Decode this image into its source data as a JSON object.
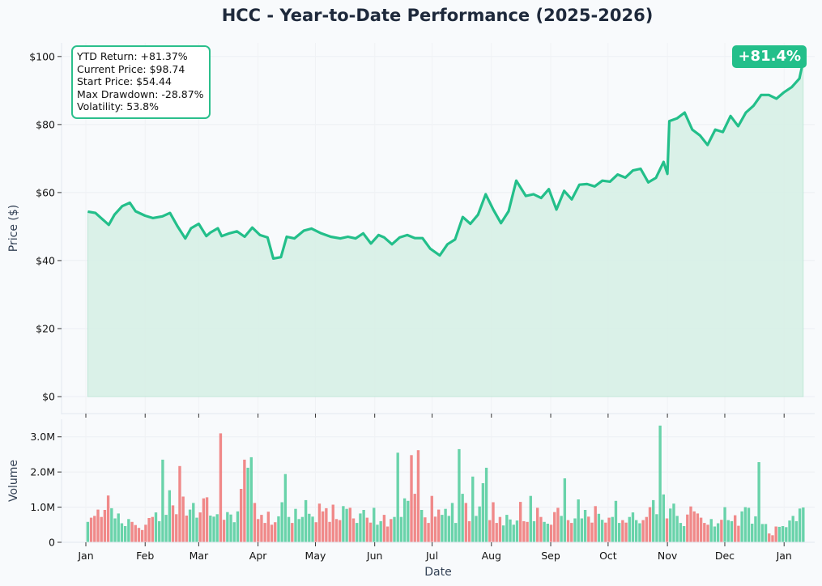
{
  "title": "HCC - Year-to-Date Performance (2025-2026)",
  "stats": {
    "ytd_return": "YTD Return: +81.37%",
    "current_price": "Current Price: $98.74",
    "start_price": "Start Price: $54.44",
    "max_drawdown": "Max Drawdown: -28.87%",
    "volatility": "Volatility: 53.8%"
  },
  "badge": "+81.4%",
  "colors": {
    "accent": "#23bf8a",
    "area_fill": "#d5efe4",
    "volume_up": "#5ccfa3",
    "volume_down": "#ef7f7f",
    "background": "#f8fafc"
  },
  "chart_data": [
    {
      "type": "area",
      "title": "HCC - Year-to-Date Performance (2025-2026)",
      "xlabel": "",
      "ylabel": "Price ($)",
      "ylim": [
        0,
        104
      ],
      "y_ticks": [
        "$0",
        "$20",
        "$40",
        "$60",
        "$80",
        "$100"
      ],
      "y_tick_values": [
        0,
        20,
        40,
        60,
        80,
        100
      ],
      "x_range": [
        "2025-01-01",
        "2026-01-17"
      ],
      "grid": true,
      "series": [
        {
          "x": [
            "2025-01-02",
            "2025-01-06",
            "2025-01-09",
            "2025-01-13",
            "2025-01-16",
            "2025-01-20",
            "2025-01-24",
            "2025-01-27",
            "2025-02-01",
            "2025-02-05",
            "2025-02-10",
            "2025-02-14",
            "2025-02-18",
            "2025-02-22",
            "2025-02-25",
            "2025-03-01",
            "2025-03-05",
            "2025-03-07",
            "2025-03-11",
            "2025-03-13",
            "2025-03-17",
            "2025-03-21",
            "2025-03-25",
            "2025-03-29",
            "2025-04-02",
            "2025-04-06",
            "2025-04-09",
            "2025-04-13",
            "2025-04-16",
            "2025-04-20",
            "2025-04-25",
            "2025-04-29",
            "2025-05-04",
            "2025-05-09",
            "2025-05-14",
            "2025-05-18",
            "2025-05-22",
            "2025-05-26",
            "2025-05-30",
            "2025-06-03",
            "2025-06-06",
            "2025-06-10",
            "2025-06-14",
            "2025-06-18",
            "2025-06-22",
            "2025-06-26",
            "2025-06-30",
            "2025-07-05",
            "2025-07-09",
            "2025-07-13",
            "2025-07-17",
            "2025-07-21",
            "2025-07-25",
            "2025-07-29",
            "2025-08-02",
            "2025-08-06",
            "2025-08-10",
            "2025-08-14",
            "2025-08-19",
            "2025-08-23",
            "2025-08-27",
            "2025-08-31",
            "2025-09-04",
            "2025-09-08",
            "2025-09-12",
            "2025-09-16",
            "2025-09-20",
            "2025-09-24",
            "2025-09-28",
            "2025-10-02",
            "2025-10-06",
            "2025-10-10",
            "2025-10-14",
            "2025-10-18",
            "2025-10-22",
            "2025-10-26",
            "2025-10-30",
            "2025-11-01",
            "2025-11-02",
            "2025-11-06",
            "2025-11-10",
            "2025-11-14",
            "2025-11-18",
            "2025-11-22",
            "2025-11-26",
            "2025-11-30",
            "2025-12-04",
            "2025-12-08",
            "2025-12-12",
            "2025-12-16",
            "2025-12-20",
            "2025-12-24",
            "2025-12-28",
            "2026-01-01",
            "2026-01-05",
            "2026-01-09",
            "2026-01-11"
          ],
          "values": [
            54.4,
            54.0,
            52.5,
            50.5,
            53.5,
            56.0,
            57.0,
            54.5,
            53.2,
            52.5,
            53.0,
            54.0,
            50.0,
            46.5,
            49.5,
            50.8,
            47.2,
            48.2,
            49.5,
            47.2,
            48.0,
            48.6,
            47.0,
            49.7,
            47.5,
            46.8,
            40.6,
            41.0,
            47.0,
            46.5,
            48.8,
            49.4,
            48.0,
            47.0,
            46.5,
            47.0,
            46.5,
            48.0,
            45.0,
            47.5,
            46.8,
            44.8,
            46.8,
            47.5,
            46.6,
            46.6,
            43.5,
            41.5,
            44.8,
            46.2,
            52.8,
            50.8,
            53.5,
            59.5,
            55.0,
            51.0,
            54.5,
            63.5,
            59.0,
            59.5,
            58.4,
            61.0,
            55.0,
            60.5,
            58.0,
            62.3,
            62.5,
            61.8,
            63.5,
            63.2,
            65.3,
            64.4,
            66.5,
            67.0,
            63.0,
            64.3,
            69.0,
            65.5,
            81.0,
            81.8,
            83.5,
            78.5,
            76.8,
            74.0,
            78.5,
            77.8,
            82.5,
            79.5,
            83.5,
            85.5,
            88.7,
            88.7,
            87.6,
            89.5,
            91.0,
            93.5,
            98.7
          ]
        }
      ]
    },
    {
      "type": "bar",
      "xlabel": "Date",
      "ylabel": "Volume",
      "ylim": [
        0,
        3.5
      ],
      "y_ticks": [
        "0",
        "1.0M",
        "2.0M",
        "3.0M"
      ],
      "y_tick_values": [
        0,
        1.0,
        2.0,
        3.0
      ],
      "unit": "M shares",
      "x_ticks": [
        "Jan",
        "Feb",
        "Mar",
        "Apr",
        "May",
        "Jun",
        "Jul",
        "Aug",
        "Sep",
        "Oct",
        "Nov",
        "Dec",
        "Jan"
      ],
      "x_tick_dates": [
        "2025-01-01",
        "2025-02-01",
        "2025-03-01",
        "2025-04-01",
        "2025-05-01",
        "2025-06-01",
        "2025-07-01",
        "2025-08-01",
        "2025-09-01",
        "2025-10-01",
        "2025-11-01",
        "2025-12-01",
        "2026-01-01"
      ],
      "grid": true,
      "volume_start": "2025-01-02",
      "volumes": [
        0.58,
        0.7,
        0.75,
        0.93,
        0.72,
        0.92,
        1.33,
        0.97,
        0.68,
        0.82,
        0.54,
        0.46,
        0.66,
        0.58,
        0.49,
        0.41,
        0.35,
        0.5,
        0.69,
        0.72,
        0.85,
        0.6,
        2.35,
        0.78,
        1.48,
        1.05,
        0.8,
        2.17,
        1.3,
        0.76,
        0.93,
        1.12,
        0.7,
        0.85,
        1.25,
        1.28,
        0.76,
        0.73,
        0.8,
        3.1,
        0.64,
        0.86,
        0.79,
        0.57,
        0.88,
        1.52,
        2.35,
        2.12,
        2.42,
        1.12,
        0.66,
        0.78,
        0.55,
        0.87,
        0.5,
        0.57,
        0.74,
        1.14,
        1.94,
        0.72,
        0.55,
        0.95,
        0.66,
        0.72,
        1.2,
        0.81,
        0.73,
        0.57,
        1.1,
        0.88,
        0.97,
        0.58,
        1.07,
        0.66,
        0.63,
        1.03,
        0.95,
        0.98,
        0.68,
        0.55,
        0.82,
        0.92,
        0.7,
        0.56,
        0.98,
        0.5,
        0.6,
        0.78,
        0.45,
        0.66,
        0.72,
        2.55,
        0.72,
        1.25,
        1.18,
        2.48,
        1.38,
        2.62,
        0.92,
        0.71,
        0.55,
        1.32,
        0.73,
        0.93,
        0.78,
        0.95,
        0.75,
        1.12,
        0.55,
        2.65,
        1.38,
        1.12,
        0.6,
        1.87,
        0.75,
        1.02,
        1.68,
        2.12,
        0.63,
        1.14,
        0.55,
        0.72,
        0.48,
        0.78,
        0.65,
        0.5,
        0.62,
        1.15,
        0.6,
        0.58,
        1.32,
        0.6,
        0.98,
        0.72,
        0.58,
        0.53,
        0.5,
        0.86,
        0.98,
        0.75,
        1.82,
        0.63,
        0.55,
        0.68,
        1.22,
        0.68,
        0.92,
        0.73,
        0.56,
        1.03,
        0.81,
        0.64,
        0.56,
        0.7,
        0.72,
        1.18,
        0.55,
        0.63,
        0.56,
        0.72,
        0.85,
        0.63,
        0.54,
        0.63,
        0.72,
        1.0,
        1.2,
        0.8,
        3.32,
        1.36,
        0.68,
        0.96,
        1.1,
        0.75,
        0.55,
        0.46,
        0.79,
        1.02,
        0.88,
        0.82,
        0.7,
        0.55,
        0.5,
        0.66,
        0.45,
        0.54,
        0.64,
        1.0,
        0.63,
        0.6,
        0.77,
        0.47,
        0.88,
        1.0,
        0.98,
        0.53,
        0.74,
        2.28,
        0.52,
        0.52,
        0.25,
        0.2,
        0.45,
        0.44,
        0.46,
        0.43,
        0.62,
        0.75,
        0.6,
        0.96,
        0.99
      ]
    }
  ]
}
